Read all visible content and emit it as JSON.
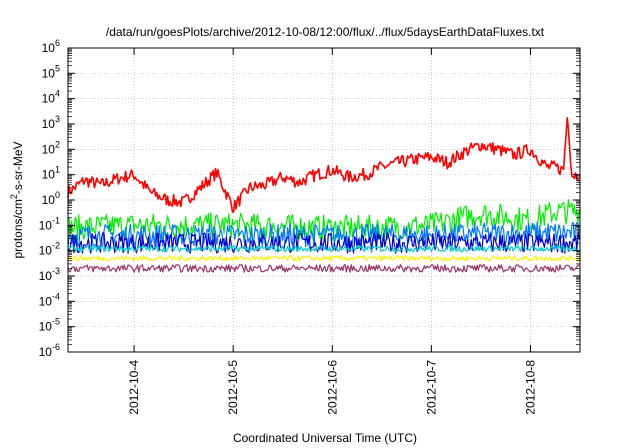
{
  "chart_data": {
    "type": "line",
    "title": "/data/run/goesPlots/archive/2012-10-08/12:00/flux/../flux/5daysEarthDataFluxes.txt",
    "xlabel": "Coordinated Universal Time (UTC)",
    "ylabel": "protons/cm²-s-sr-MeV",
    "ylabel_parts": {
      "pre": "protons/cm",
      "sup": "2",
      "post": "-s-sr-MeV"
    },
    "yscale": "log",
    "ylim": [
      1e-06,
      1000000
    ],
    "xlim": [
      "2012-10-03T08:00",
      "2012-10-08T12:00"
    ],
    "grid": true,
    "x_ticks": [
      {
        "label": "2012-10-4",
        "value": "2012-10-04T00:00"
      },
      {
        "label": "2012-10-5",
        "value": "2012-10-05T00:00"
      },
      {
        "label": "2012-10-6",
        "value": "2012-10-06T00:00"
      },
      {
        "label": "2012-10-7",
        "value": "2012-10-07T00:00"
      },
      {
        "label": "2012-10-8",
        "value": "2012-10-08T00:00"
      }
    ],
    "y_ticks": [
      {
        "base": "10",
        "exp": "-6",
        "value": 1e-06
      },
      {
        "base": "10",
        "exp": "-5",
        "value": 1e-05
      },
      {
        "base": "10",
        "exp": "-4",
        "value": 0.0001
      },
      {
        "base": "10",
        "exp": "-3",
        "value": 0.001
      },
      {
        "base": "10",
        "exp": "-2",
        "value": 0.01
      },
      {
        "base": "10",
        "exp": "-1",
        "value": 0.1
      },
      {
        "base": "10",
        "exp": "0",
        "value": 1
      },
      {
        "base": "10",
        "exp": "1",
        "value": 10
      },
      {
        "base": "10",
        "exp": "2",
        "value": 100
      },
      {
        "base": "10",
        "exp": "3",
        "value": 1000
      },
      {
        "base": "10",
        "exp": "4",
        "value": 10000
      },
      {
        "base": "10",
        "exp": "5",
        "value": 100000
      },
      {
        "base": "10",
        "exp": "6",
        "value": 1000000
      }
    ],
    "series": [
      {
        "color": "#ff0000",
        "noise": 0.25,
        "x": [
          "2012-10-03T08:00",
          "2012-10-03T12:00",
          "2012-10-03T16:00",
          "2012-10-03T20:00",
          "2012-10-04T00:00",
          "2012-10-04T04:00",
          "2012-10-04T08:00",
          "2012-10-04T12:00",
          "2012-10-04T16:00",
          "2012-10-04T20:00",
          "2012-10-05T00:00",
          "2012-10-05T04:00",
          "2012-10-05T08:00",
          "2012-10-05T12:00",
          "2012-10-05T16:00",
          "2012-10-05T20:00",
          "2012-10-06T00:00",
          "2012-10-06T04:00",
          "2012-10-06T08:00",
          "2012-10-06T12:00",
          "2012-10-06T16:00",
          "2012-10-06T20:00",
          "2012-10-07T00:00",
          "2012-10-07T04:00",
          "2012-10-07T08:00",
          "2012-10-07T12:00",
          "2012-10-07T16:00",
          "2012-10-07T20:00",
          "2012-10-08T00:00",
          "2012-10-08T04:00",
          "2012-10-08T06:00",
          "2012-10-08T08:00",
          "2012-10-08T09:00",
          "2012-10-08T10:00",
          "2012-10-08T12:00"
        ],
        "values": [
          2,
          6,
          4,
          7,
          10,
          2,
          1,
          0.8,
          3,
          12,
          0.5,
          3,
          4,
          8,
          5,
          10,
          15,
          8,
          10,
          20,
          30,
          40,
          50,
          30,
          80,
          150,
          100,
          60,
          100,
          20,
          20,
          15,
          3000,
          10,
          10
        ]
      },
      {
        "color": "#00ee00",
        "noise": 0.5,
        "x": [
          "2012-10-03T08:00",
          "2012-10-04T00:00",
          "2012-10-05T00:00",
          "2012-10-06T00:00",
          "2012-10-06T12:00",
          "2012-10-07T00:00",
          "2012-10-07T12:00",
          "2012-10-08T00:00",
          "2012-10-08T06:00",
          "2012-10-08T12:00"
        ],
        "values": [
          0.08,
          0.1,
          0.1,
          0.08,
          0.08,
          0.1,
          0.3,
          0.15,
          0.35,
          0.35
        ]
      },
      {
        "color": "#0077ff",
        "noise": 0.45,
        "x": [
          "2012-10-03T08:00",
          "2012-10-04T00:00",
          "2012-10-05T00:00",
          "2012-10-06T00:00",
          "2012-10-07T00:00",
          "2012-10-08T00:00",
          "2012-10-08T12:00"
        ],
        "values": [
          0.04,
          0.04,
          0.04,
          0.04,
          0.04,
          0.05,
          0.05
        ]
      },
      {
        "color": "#0000cc",
        "noise": 0.4,
        "x": [
          "2012-10-03T08:00",
          "2012-10-04T00:00",
          "2012-10-05T00:00",
          "2012-10-06T00:00",
          "2012-10-07T00:00",
          "2012-10-08T00:00",
          "2012-10-08T12:00"
        ],
        "values": [
          0.02,
          0.02,
          0.02,
          0.02,
          0.02,
          0.02,
          0.02
        ]
      },
      {
        "color": "#00cccc",
        "noise": 0.12,
        "x": [
          "2012-10-03T08:00",
          "2012-10-08T12:00"
        ],
        "values": [
          0.012,
          0.012
        ]
      },
      {
        "color": "#ffee00",
        "noise": 0.1,
        "x": [
          "2012-10-03T08:00",
          "2012-10-08T12:00"
        ],
        "values": [
          0.005,
          0.005
        ]
      },
      {
        "color": "#993366",
        "noise": 0.15,
        "x": [
          "2012-10-03T08:00",
          "2012-10-08T12:00"
        ],
        "values": [
          0.002,
          0.002
        ]
      }
    ]
  }
}
